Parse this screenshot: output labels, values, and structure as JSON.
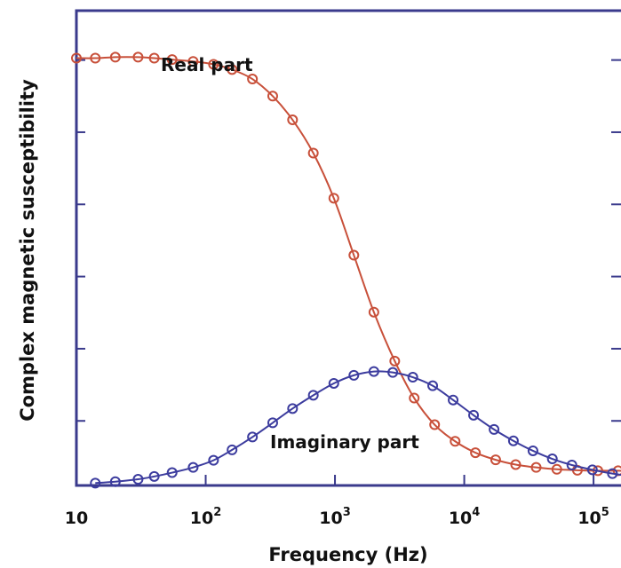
{
  "chart_data": {
    "type": "line",
    "xlabel": "Frequency (Hz)",
    "ylabel": "Complex magnetic susceptibility",
    "x_scale": "log",
    "xlim": [
      10,
      250000
    ],
    "ylim": [
      0,
      1
    ],
    "grid": false,
    "x_tick_values": [
      10,
      100,
      1000,
      10000,
      100000
    ],
    "x_tick_labels": [
      {
        "base": "10",
        "exp": ""
      },
      {
        "base": "10",
        "exp": "2"
      },
      {
        "base": "10",
        "exp": "3"
      },
      {
        "base": "10",
        "exp": "4"
      },
      {
        "base": "10",
        "exp": "5"
      }
    ],
    "y_tick_values": [
      0.136,
      0.288,
      0.44,
      0.592,
      0.744,
      0.896
    ],
    "y_tick_labels": [],
    "series": [
      {
        "name": "Real part",
        "color": "#c8503a",
        "marker": "circle-open",
        "x": [
          10,
          14,
          20,
          30,
          40,
          55,
          80,
          115,
          160,
          230,
          330,
          470,
          680,
          980,
          1400,
          2000,
          2900,
          4100,
          5900,
          8500,
          12200,
          17500,
          25000,
          36000,
          52000,
          75000,
          108000,
          155000,
          225000
        ],
        "y": [
          0.9,
          0.9,
          0.902,
          0.902,
          0.9,
          0.897,
          0.893,
          0.887,
          0.876,
          0.856,
          0.82,
          0.77,
          0.7,
          0.605,
          0.485,
          0.365,
          0.262,
          0.184,
          0.128,
          0.093,
          0.069,
          0.054,
          0.044,
          0.038,
          0.034,
          0.032,
          0.031,
          0.031,
          0.03
        ]
      },
      {
        "name": "Imaginary part",
        "color": "#3c3c9e",
        "marker": "circle-open",
        "x": [
          14,
          20,
          30,
          40,
          55,
          80,
          115,
          160,
          230,
          330,
          470,
          680,
          980,
          1400,
          2000,
          2800,
          4000,
          5700,
          8200,
          11800,
          17000,
          24000,
          34000,
          48000,
          68000,
          98000,
          140000,
          200000,
          240000
        ],
        "y": [
          0.005,
          0.008,
          0.013,
          0.019,
          0.027,
          0.038,
          0.053,
          0.075,
          0.102,
          0.132,
          0.162,
          0.19,
          0.215,
          0.232,
          0.24,
          0.238,
          0.228,
          0.21,
          0.18,
          0.148,
          0.118,
          0.094,
          0.073,
          0.056,
          0.043,
          0.033,
          0.025,
          0.019,
          0.016
        ]
      }
    ],
    "annotations": [
      {
        "text": "Real part",
        "series": "Real part"
      },
      {
        "text": "Imaginary part",
        "series": "Imaginary part"
      }
    ]
  }
}
